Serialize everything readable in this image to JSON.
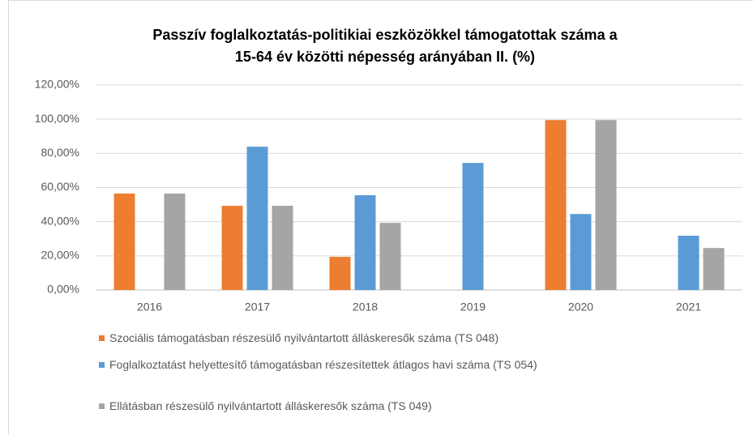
{
  "chart_data": {
    "type": "bar",
    "title": [
      "Passzív foglalkoztatás-politikiai eszközökkel támogatottak száma a",
      "15-64 év közötti népesség  arányában II. (%)"
    ],
    "categories": [
      "2016",
      "2017",
      "2018",
      "2019",
      "2020",
      "2021"
    ],
    "series": [
      {
        "name": "Szociális támogatásban részesülő nyilvántartott álláskeresők száma (TS 048)",
        "color": "#ed7d31",
        "values": [
          56.5,
          49.3,
          19.4,
          null,
          99.5,
          null
        ]
      },
      {
        "name": "Foglalkoztatást helyettesítő támogatásban részesítettek átlagos havi száma (TS 054)",
        "color": "#5b9bd5",
        "values": [
          null,
          83.9,
          55.5,
          74.4,
          44.5,
          31.8
        ]
      },
      {
        "name": "Ellátásban részesülő nyilvántartott álláskeresők száma (TS 049)",
        "color": "#a5a5a5",
        "values": [
          56.5,
          49.3,
          39.3,
          null,
          99.5,
          24.6
        ]
      }
    ],
    "ylim": [
      0,
      120
    ],
    "yticks": [
      {
        "value": 0,
        "label": "0,00%"
      },
      {
        "value": 20,
        "label": "20,00%"
      },
      {
        "value": 40,
        "label": "40,00%"
      },
      {
        "value": 60,
        "label": "60,00%"
      },
      {
        "value": 80,
        "label": "80,00%"
      },
      {
        "value": 100,
        "label": "100,00%"
      },
      {
        "value": 120,
        "label": "120,00%"
      }
    ],
    "grid": true,
    "legend": "bottom"
  }
}
